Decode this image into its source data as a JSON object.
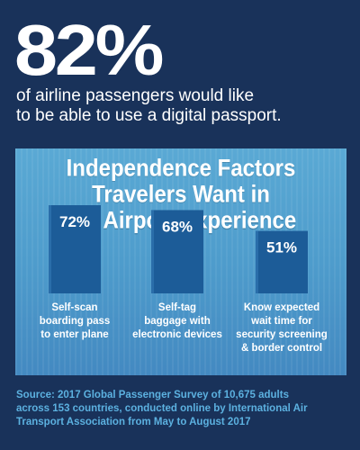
{
  "headline": {
    "stat": "82%",
    "text_line1": "of airline passengers would like",
    "text_line2": "to be able to use a digital passport."
  },
  "panel": {
    "title_line1": "Independence Factors",
    "title_line2": "Travelers Want in",
    "title_line3": "the Airport Experience"
  },
  "chart_data": {
    "type": "bar",
    "title": "Independence Factors Travelers Want in the Airport Experience",
    "categories": [
      [
        "Self-scan",
        "boarding pass",
        "to enter plane"
      ],
      [
        "Self-tag",
        "baggage with",
        "electronic devices"
      ],
      [
        "Know expected",
        "wait time for",
        "security screening",
        "& border control"
      ]
    ],
    "values": [
      72,
      68,
      51
    ],
    "value_labels": [
      "72%",
      "68%",
      "51%"
    ],
    "ylim": [
      0,
      100
    ],
    "colors": {
      "bar": "#1c5c98",
      "bar_highlight": "#2a6eaa",
      "text": "#ffffff"
    }
  },
  "source": {
    "line1": "Source: 2017 Global Passenger Survey of 10,675 adults",
    "line2": "across 153 countries, conducted online by International Air",
    "line3": "Transport Association from May to August 2017"
  }
}
